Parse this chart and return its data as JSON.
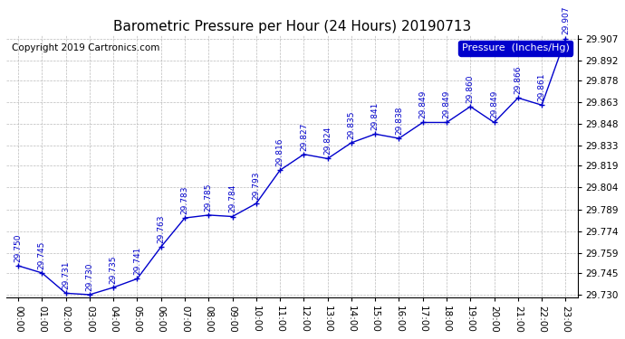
{
  "title": "Barometric Pressure per Hour (24 Hours) 20190713",
  "copyright": "Copyright 2019 Cartronics.com",
  "legend_label": "Pressure  (Inches/Hg)",
  "hours": [
    0,
    1,
    2,
    3,
    4,
    5,
    6,
    7,
    8,
    9,
    10,
    11,
    12,
    13,
    14,
    15,
    16,
    17,
    18,
    19,
    20,
    21,
    22,
    23
  ],
  "hour_labels": [
    "00:00",
    "01:00",
    "02:00",
    "03:00",
    "04:00",
    "05:00",
    "06:00",
    "07:00",
    "08:00",
    "09:00",
    "10:00",
    "11:00",
    "12:00",
    "13:00",
    "14:00",
    "15:00",
    "16:00",
    "17:00",
    "18:00",
    "19:00",
    "20:00",
    "21:00",
    "22:00",
    "23:00"
  ],
  "values": [
    29.75,
    29.745,
    29.731,
    29.73,
    29.735,
    29.741,
    29.763,
    29.783,
    29.785,
    29.784,
    29.793,
    29.816,
    29.827,
    29.824,
    29.835,
    29.841,
    29.838,
    29.849,
    29.849,
    29.86,
    29.849,
    29.866,
    29.861,
    29.907
  ],
  "line_color": "#0000cc",
  "marker": "+",
  "marker_size": 5,
  "ylim_min": 29.73,
  "ylim_max": 29.907,
  "ytick_values": [
    29.73,
    29.745,
    29.759,
    29.774,
    29.789,
    29.804,
    29.819,
    29.833,
    29.848,
    29.863,
    29.878,
    29.892,
    29.907
  ],
  "bg_color": "#ffffff",
  "grid_color": "#aaaaaa",
  "annotation_color": "#0000cc",
  "annotation_fontsize": 6.5,
  "title_fontsize": 11,
  "copyright_fontsize": 7.5,
  "tick_fontsize": 7.5,
  "legend_fontsize": 8
}
